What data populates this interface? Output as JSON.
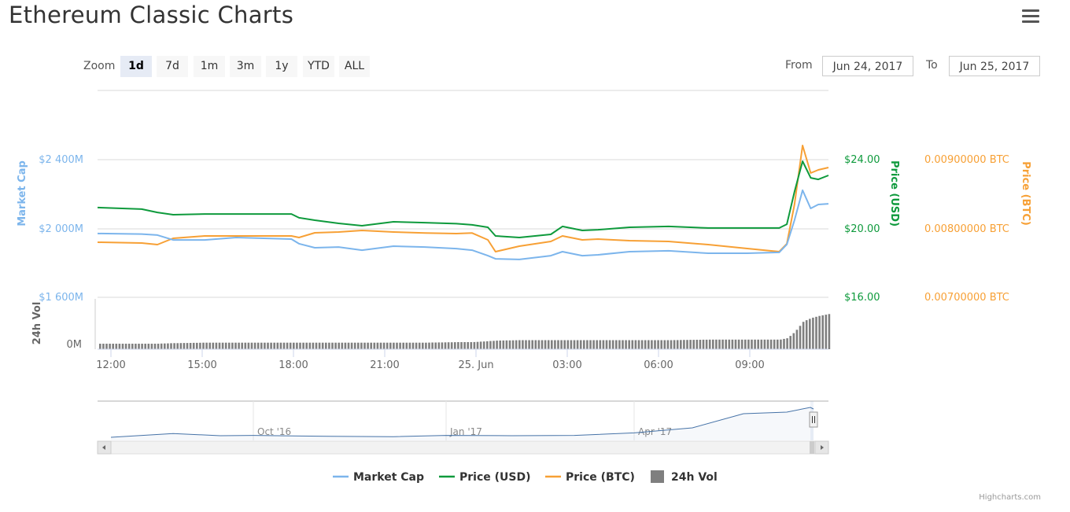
{
  "page": {
    "title": "Ethereum Classic Charts",
    "menu_icon": "hamburger-icon",
    "credit": "Highcharts.com"
  },
  "range_selector": {
    "zoom_label": "Zoom",
    "buttons": [
      "1d",
      "7d",
      "1m",
      "3m",
      "1y",
      "YTD",
      "ALL"
    ],
    "active": "1d",
    "from_label": "From",
    "from_value": "Jun 24, 2017",
    "to_label": "To",
    "to_value": "Jun 25, 2017"
  },
  "chart_data": {
    "type": "line",
    "x_ticks": [
      "12:00",
      "15:00",
      "18:00",
      "21:00",
      "25. Jun",
      "03:00",
      "06:00",
      "09:00"
    ],
    "x": [
      "Jun 24 11:34",
      "Jun 24 13:01",
      "Jun 24 13:32",
      "Jun 24 14:03",
      "Jun 24 15:05",
      "Jun 24 16:07",
      "Jun 24 17:56",
      "Jun 24 18:11",
      "Jun 24 18:42",
      "Jun 24 19:29",
      "Jun 24 20:15",
      "Jun 24 21:17",
      "Jun 24 22:19",
      "Jun 24 23:21",
      "Jun 24 23:52",
      "Jun 25 00:23",
      "Jun 25 00:38",
      "Jun 25 01:25",
      "Jun 25 02:27",
      "Jun 25 02:50",
      "Jun 25 03:29",
      "Jun 25 04:00",
      "Jun 25 05:02",
      "Jun 25 06:19",
      "Jun 25 07:37",
      "Jun 25 08:54",
      "Jun 25 09:57",
      "Jun 25 10:12",
      "Jun 25 10:27",
      "Jun 25 10:43",
      "Jun 25 10:59",
      "Jun 25 11:14",
      "Jun 25 11:34"
    ],
    "axes": {
      "market_cap": {
        "label": "Market Cap",
        "ticks": [
          "$1 600M",
          "$2 000M",
          "$2 400M"
        ],
        "range": [
          1600,
          2800
        ],
        "color": "#7cb5ec"
      },
      "price_usd": {
        "label": "Price (USD)",
        "ticks": [
          "$16.00",
          "$20.00",
          "$24.00"
        ],
        "range": [
          16,
          28
        ],
        "color": "#0e9a3c"
      },
      "price_btc": {
        "label": "Price (BTC)",
        "ticks": [
          "0.00700000 BTC",
          "0.00800000 BTC",
          "0.00900000 BTC"
        ],
        "range": [
          0.007,
          0.01
        ],
        "color": "#f7a035"
      },
      "volume": {
        "label": "24h Vol",
        "ticks": [
          "0M"
        ]
      }
    },
    "series": [
      {
        "name": "Market Cap",
        "axis": "market_cap",
        "color": "#7cb5ec",
        "values": [
          1973,
          1970,
          1964,
          1936,
          1936,
          1950,
          1941,
          1914,
          1891,
          1895,
          1877,
          1900,
          1895,
          1886,
          1877,
          1845,
          1827,
          1823,
          1845,
          1868,
          1845,
          1850,
          1868,
          1873,
          1859,
          1859,
          1864,
          1910,
          2050,
          2223,
          2118,
          2141,
          2145
        ]
      },
      {
        "name": "Price (USD)",
        "axis": "price_usd",
        "color": "#0e9a3c",
        "values": [
          21.23,
          21.14,
          20.95,
          20.82,
          20.86,
          20.86,
          20.86,
          20.64,
          20.5,
          20.32,
          20.18,
          20.41,
          20.36,
          20.3,
          20.23,
          20.09,
          19.59,
          19.5,
          19.68,
          20.14,
          19.91,
          19.95,
          20.09,
          20.14,
          20.05,
          20.05,
          20.05,
          20.27,
          22.14,
          23.91,
          22.95,
          22.86,
          23.09
        ]
      },
      {
        "name": "Price (BTC)",
        "axis": "price_btc",
        "color": "#f7a035",
        "values": [
          0.007807,
          0.007795,
          0.007773,
          0.007864,
          0.007898,
          0.007898,
          0.007898,
          0.007875,
          0.007943,
          0.007955,
          0.007977,
          0.007955,
          0.00794,
          0.007932,
          0.00794,
          0.007841,
          0.00767,
          0.00775,
          0.007818,
          0.007898,
          0.007841,
          0.007852,
          0.00783,
          0.007818,
          0.007773,
          0.007716,
          0.00767,
          0.007784,
          0.008352,
          0.009205,
          0.008807,
          0.008852,
          0.008886
        ]
      },
      {
        "name": "24h Vol",
        "axis": "volume",
        "color": "#7f7f7f",
        "relative_levels": [
          0.11,
          0.11,
          0.11,
          0.12,
          0.13,
          0.13,
          0.13,
          0.13,
          0.13,
          0.13,
          0.13,
          0.13,
          0.13,
          0.14,
          0.14,
          0.16,
          0.17,
          0.18,
          0.18,
          0.18,
          0.18,
          0.18,
          0.18,
          0.18,
          0.19,
          0.19,
          0.19,
          0.22,
          0.35,
          0.55,
          0.62,
          0.66,
          0.7
        ]
      }
    ],
    "legend": {
      "position": "bottom",
      "items": [
        "Market Cap",
        "Price (USD)",
        "Price (BTC)",
        "24h Vol"
      ]
    },
    "grid": true,
    "navigator": {
      "ticks": [
        "Oct '16",
        "Jan '17",
        "Apr '17"
      ],
      "x": [
        "Jul '16",
        "Aug '16",
        "Sep '16",
        "Oct '16",
        "Nov '16",
        "Dec '16",
        "Jan '17",
        "Feb '17",
        "Mar '17",
        "Apr '17",
        "May '17",
        "May '17b",
        "Jun '17",
        "Jun '17b"
      ],
      "relative_levels": [
        0.0,
        0.12,
        0.05,
        0.06,
        0.03,
        0.02,
        0.06,
        0.05,
        0.06,
        0.14,
        0.3,
        0.75,
        0.8,
        0.95
      ]
    }
  }
}
